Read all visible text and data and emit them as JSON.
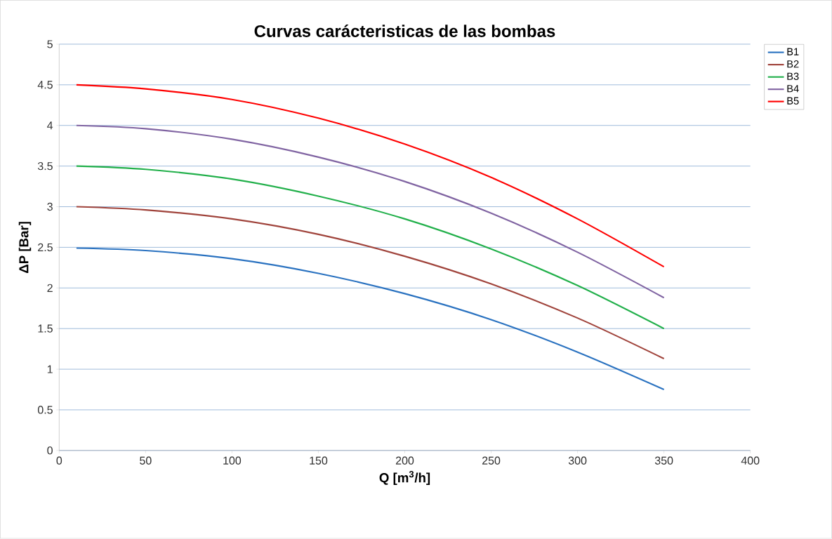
{
  "chart_data": {
    "type": "line",
    "title": "Curvas carácteristicas de las bombas",
    "xlabel": "Q  [m$^{3}$/h]",
    "ylabel": "ΔP [Bar]",
    "x": [
      10,
      50,
      100,
      150,
      200,
      250,
      300,
      350
    ],
    "series": [
      {
        "name": "B1",
        "color": "#2a72c0",
        "values": [
          2.49,
          2.46,
          2.36,
          2.18,
          1.93,
          1.61,
          1.21,
          0.75
        ]
      },
      {
        "name": "B2",
        "color": "#a0443c",
        "values": [
          3.0,
          2.96,
          2.85,
          2.66,
          2.39,
          2.05,
          1.63,
          1.13
        ]
      },
      {
        "name": "B3",
        "color": "#22b04b",
        "values": [
          3.5,
          3.46,
          3.34,
          3.13,
          2.85,
          2.48,
          2.03,
          1.5
        ]
      },
      {
        "name": "B4",
        "color": "#8064a2",
        "values": [
          4.0,
          3.96,
          3.83,
          3.61,
          3.31,
          2.92,
          2.44,
          1.88
        ]
      },
      {
        "name": "B5",
        "color": "#ff0000",
        "values": [
          4.5,
          4.45,
          4.32,
          4.09,
          3.77,
          3.36,
          2.85,
          2.26
        ]
      }
    ],
    "xlim": [
      0,
      400
    ],
    "ylim": [
      0,
      5
    ],
    "xticks": [
      0,
      50,
      100,
      150,
      200,
      250,
      300,
      350,
      400
    ],
    "yticks": [
      0,
      0.5,
      1,
      1.5,
      2,
      2.5,
      3,
      3.5,
      4,
      4.5,
      5
    ],
    "grid": "y",
    "legend": "top right",
    "marker": "none",
    "line_style": "solid"
  }
}
